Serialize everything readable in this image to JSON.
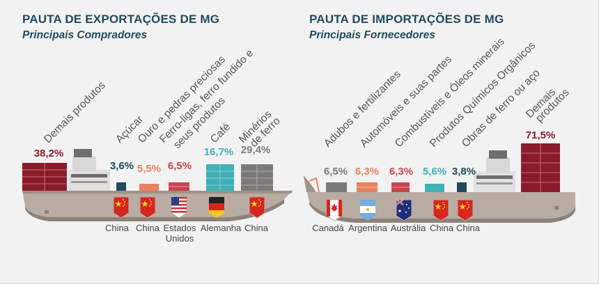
{
  "export": {
    "title": "PAUTA DE EXPORTAÇÕES DE MG",
    "subtitle": "Principais Compradores",
    "items": [
      {
        "category": "Demais produtos",
        "percent": "38,2%",
        "color": "#8b1a2b",
        "country": "",
        "flag": ""
      },
      {
        "category": "Açúcar",
        "percent": "3,6%",
        "color": "#1f4a5c",
        "country": "China",
        "flag": "china-flag-icon"
      },
      {
        "category": "Ouro e pedras preciosas",
        "percent": "5,5%",
        "color": "#e8825c",
        "country": "China",
        "flag": "china-flag-icon"
      },
      {
        "category": "Ferro-ligas, ferro fundido e seus produtos",
        "percent": "6,5%",
        "color": "#c9444f",
        "country": "Estados Unidos",
        "flag": "usa-flag-icon"
      },
      {
        "category": "Café",
        "percent": "16,7%",
        "color": "#3fb0b5",
        "country": "Alemanha",
        "flag": "germany-flag-icon"
      },
      {
        "category": "Minérios de ferro",
        "percent": "29,4%",
        "color": "#7a7a7a",
        "country": "China",
        "flag": "china-flag-icon"
      }
    ]
  },
  "import": {
    "title": "PAUTA DE IMPORTAÇÕES DE MG",
    "subtitle": "Principais Fornecedores",
    "items": [
      {
        "category": "Adubos e fertilizantes",
        "percent": "6,5%",
        "color": "#7a7a7a",
        "country": "Canadá",
        "flag": "canada-flag-icon"
      },
      {
        "category": "Automóveis e suas partes",
        "percent": "6,3%",
        "color": "#e8825c",
        "country": "Argentina",
        "flag": "argentina-flag-icon"
      },
      {
        "category": "Combustíveis e Óleos minerais",
        "percent": "6,3%",
        "color": "#c9444f",
        "country": "Austrália",
        "flag": "australia-flag-icon"
      },
      {
        "category": "Produtos Químicos Orgânicos",
        "percent": "5,6%",
        "color": "#3fb0b5",
        "country": "China",
        "flag": "china-flag-icon"
      },
      {
        "category": "Obras de ferro ou aço",
        "percent": "3,8%",
        "color": "#1f4a5c",
        "country": "China",
        "flag": "china-flag-icon"
      },
      {
        "category": "Demais produtos",
        "percent": "71,5%",
        "color": "#8b1a2b",
        "country": "",
        "flag": ""
      }
    ]
  },
  "colors": {
    "title": "#1f4a5c",
    "hull": "#b9aca2",
    "hull_dark": "#8d8179",
    "container_gray": "#7a7a7a"
  }
}
